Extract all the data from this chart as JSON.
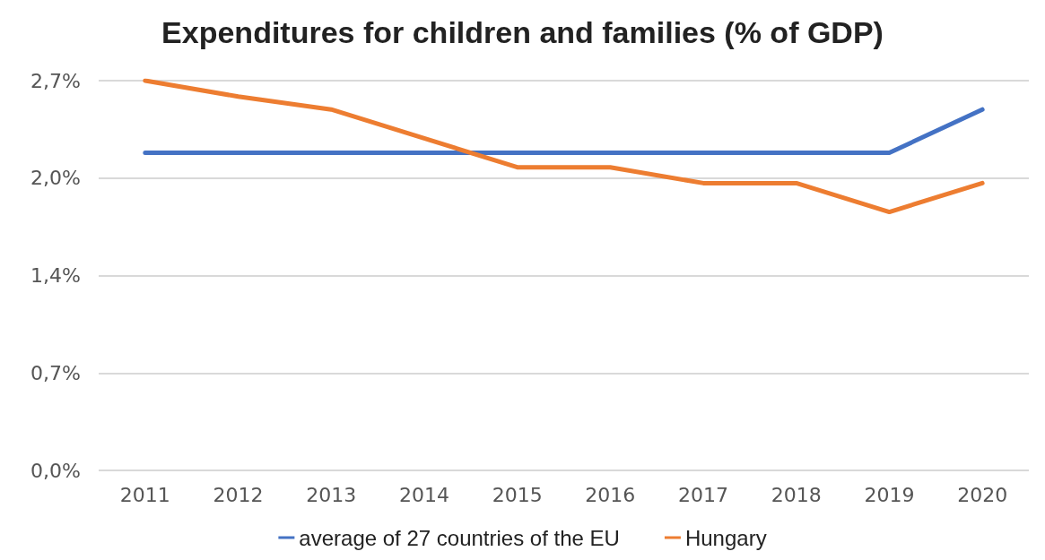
{
  "chart_data": {
    "type": "line",
    "title": "Expenditures for children and families (% of GDP)",
    "categories": [
      "2011",
      "2012",
      "2013",
      "2014",
      "2015",
      "2016",
      "2017",
      "2018",
      "2019",
      "2020"
    ],
    "series": [
      {
        "name": "average of 27 countries of the EU",
        "color": "#4472c4",
        "values": [
          2.2,
          2.2,
          2.2,
          2.2,
          2.2,
          2.2,
          2.2,
          2.2,
          2.2,
          2.5
        ]
      },
      {
        "name": "Hungary",
        "color": "#ed7d31",
        "values": [
          2.7,
          2.59,
          2.5,
          2.3,
          2.1,
          2.1,
          1.99,
          1.99,
          1.79,
          1.99
        ]
      }
    ],
    "ylim": [
      0,
      2.7
    ],
    "yticks": [
      {
        "value": 0,
        "label": "0,0%"
      },
      {
        "value": 0.675,
        "label": "0,7%"
      },
      {
        "value": 1.35,
        "label": "1,4%"
      },
      {
        "value": 2.025,
        "label": "2,0%"
      },
      {
        "value": 2.7,
        "label": "2,7%"
      }
    ],
    "grid": "y",
    "legend": "bottom",
    "marker": "none",
    "line_style": "solid"
  }
}
